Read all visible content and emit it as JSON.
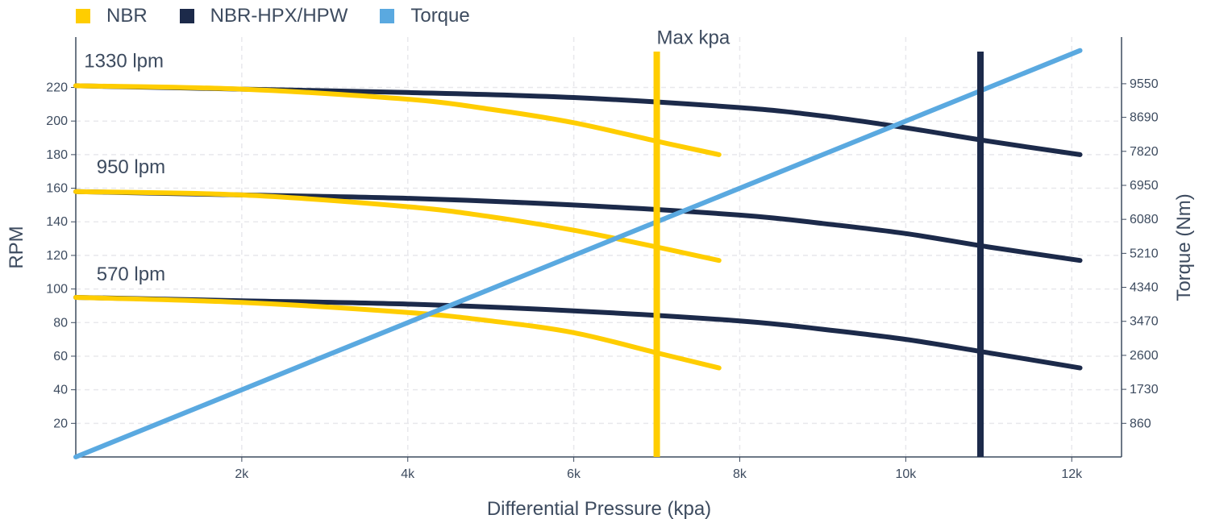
{
  "chart_data": {
    "type": "line",
    "xlabel": "Differential Pressure (kpa)",
    "ylabel": "RPM",
    "y2label": "Torque (Nm)",
    "xlim": [
      0,
      12600
    ],
    "ylim": [
      0,
      250
    ],
    "y2lim": [
      0,
      10744
    ],
    "x_ticks": [
      2000,
      4000,
      6000,
      8000,
      10000,
      12000
    ],
    "x_tick_labels": [
      "2k",
      "4k",
      "6k",
      "8k",
      "10k",
      "12k"
    ],
    "y_ticks": [
      20,
      40,
      60,
      80,
      100,
      120,
      140,
      160,
      180,
      200,
      220
    ],
    "y2_ticks": [
      860,
      1730,
      2600,
      3470,
      4340,
      5210,
      6080,
      6950,
      7820,
      8690,
      9550
    ],
    "grid": true,
    "legend_position": "top-left",
    "colors": {
      "NBR": "#ffcd00",
      "NBR-HPX/HPW": "#1c2a4a",
      "Torque": "#5aa9e0"
    },
    "legend": [
      "NBR",
      "NBR-HPX/HPW",
      "Torque"
    ],
    "series": [
      {
        "name": "NBR",
        "flow": "1330 lpm",
        "x": [
          0,
          2000,
          4000,
          5000,
          6000,
          7000,
          7750
        ],
        "y": [
          221,
          219,
          213,
          207,
          199,
          188,
          180
        ]
      },
      {
        "name": "NBR",
        "flow": "950 lpm",
        "x": [
          0,
          2000,
          4000,
          5000,
          6000,
          7000,
          7750
        ],
        "y": [
          158,
          156,
          149,
          143,
          135,
          125,
          117
        ]
      },
      {
        "name": "NBR",
        "flow": "570 lpm",
        "x": [
          0,
          2000,
          4000,
          5000,
          6000,
          7000,
          7750
        ],
        "y": [
          95,
          92,
          86,
          81,
          74,
          62,
          53
        ]
      },
      {
        "name": "NBR-HPX/HPW",
        "flow": "1330 lpm",
        "x": [
          0,
          2000,
          4000,
          6000,
          8000,
          9000,
          10000,
          11000,
          12100
        ],
        "y": [
          221,
          219,
          217,
          214,
          208,
          203,
          196,
          188,
          180
        ]
      },
      {
        "name": "NBR-HPX/HPW",
        "flow": "950 lpm",
        "x": [
          0,
          2000,
          4000,
          6000,
          8000,
          9000,
          10000,
          11000,
          12100
        ],
        "y": [
          158,
          156,
          154,
          150,
          144,
          139,
          133,
          125,
          117
        ]
      },
      {
        "name": "NBR-HPX/HPW",
        "flow": "570 lpm",
        "x": [
          0,
          2000,
          4000,
          6000,
          8000,
          9000,
          10000,
          11000,
          12100
        ],
        "y": [
          95,
          93,
          91,
          87,
          81,
          76,
          70,
          62,
          53
        ]
      },
      {
        "name": "Torque",
        "axis": "y2",
        "x": [
          0,
          12100
        ],
        "y": [
          0,
          10400
        ]
      }
    ],
    "annotations": [
      {
        "text": "1330 lpm",
        "x": 100,
        "y": 232
      },
      {
        "text": "950 lpm",
        "x": 250,
        "y": 169
      },
      {
        "text": "570 lpm",
        "x": 250,
        "y": 105
      },
      {
        "text": "Max kpa",
        "x": 7000,
        "y": 246
      }
    ],
    "vlines": [
      {
        "name": "NBR",
        "x": 7000
      },
      {
        "name": "NBR-HPX/HPW",
        "x": 10900
      }
    ]
  }
}
